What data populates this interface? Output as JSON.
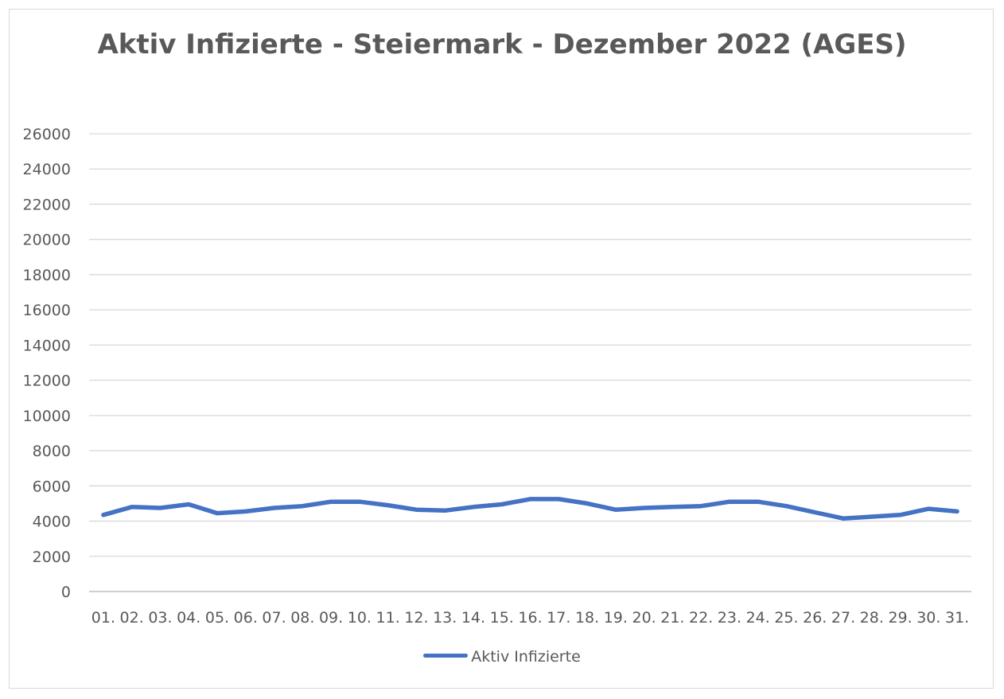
{
  "chart_data": {
    "type": "line",
    "title": "Aktiv Infizierte - Steiermark - Dezember 2022 (AGES)",
    "categories": [
      "01.",
      "02.",
      "03.",
      "04.",
      "05.",
      "06.",
      "07.",
      "08.",
      "09.",
      "10.",
      "11.",
      "12.",
      "13.",
      "14.",
      "15.",
      "16.",
      "17.",
      "18.",
      "19.",
      "20.",
      "21.",
      "22.",
      "23.",
      "24.",
      "25.",
      "26.",
      "27.",
      "28.",
      "29.",
      "30.",
      "31."
    ],
    "series": [
      {
        "name": "Aktiv Infizierte",
        "color": "#4472c4",
        "values": [
          4350,
          4800,
          4750,
          4950,
          4450,
          4550,
          4750,
          4850,
          5100,
          5100,
          4900,
          4650,
          4600,
          4800,
          4950,
          5250,
          5250,
          5000,
          4650,
          4750,
          4800,
          4850,
          5100,
          5100,
          4850,
          4500,
          4150,
          4250,
          4350,
          4700,
          4550
        ]
      }
    ],
    "yticks": [
      "0",
      "2000",
      "4000",
      "6000",
      "8000",
      "10000",
      "12000",
      "14000",
      "16000",
      "18000",
      "20000",
      "22000",
      "24000",
      "26000"
    ],
    "ylim": [
      0,
      26000
    ],
    "xlabel": "",
    "ylabel": "",
    "grid": true,
    "legend_position": "bottom"
  }
}
